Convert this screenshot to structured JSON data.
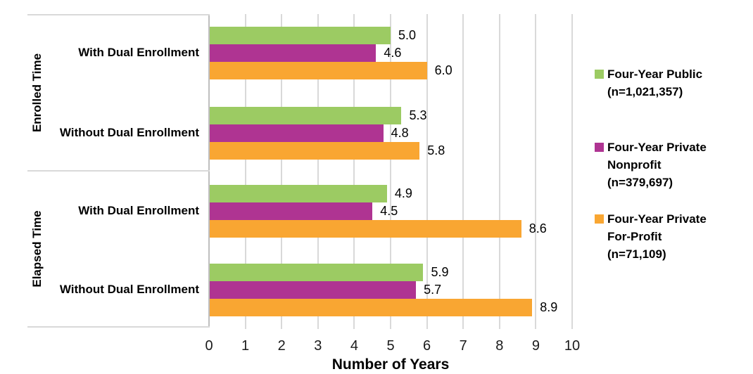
{
  "chart_data": {
    "type": "bar",
    "orientation": "horizontal",
    "xlabel": "Number of Years",
    "xlim": [
      0,
      10
    ],
    "x_ticks": [
      0,
      1,
      2,
      3,
      4,
      5,
      6,
      7,
      8,
      9,
      10
    ],
    "grid": true,
    "legend_position": "right",
    "sections": [
      {
        "label": "Enrolled Time"
      },
      {
        "label": "Elapsed Time"
      }
    ],
    "groups": [
      {
        "section": "Enrolled Time",
        "category": "With Dual Enrollment",
        "values": [
          5.0,
          4.6,
          6.0
        ]
      },
      {
        "section": "Enrolled Time",
        "category": "Without Dual Enrollment",
        "values": [
          5.3,
          4.8,
          5.8
        ]
      },
      {
        "section": "Elapsed Time",
        "category": "With Dual Enrollment",
        "values": [
          4.9,
          4.5,
          8.6
        ]
      },
      {
        "section": "Elapsed Time",
        "category": "Without Dual Enrollment",
        "values": [
          5.9,
          5.7,
          8.9
        ]
      }
    ],
    "series": [
      {
        "name": "Four-Year Public (n=1,021,357)",
        "color": "#9CCB63"
      },
      {
        "name": "Four-Year Private Nonprofit (n=379,697)",
        "color": "#AF3492"
      },
      {
        "name": "Four-Year Private For-Profit (n=71,109)",
        "color": "#F9A632"
      }
    ],
    "legend": [
      {
        "lines": [
          "Four-Year Public",
          "(n=1,021,357)"
        ],
        "color": "#9CCB63"
      },
      {
        "lines": [
          "Four-Year Private",
          "Nonprofit",
          "(n=379,697)"
        ],
        "color": "#AF3492"
      },
      {
        "lines": [
          "Four-Year Private",
          "For-Profit",
          "(n=71,109)"
        ],
        "color": "#F9A632"
      }
    ]
  },
  "colors": {
    "gridline": "#D9D9D9",
    "axis_line": "#BFBFBF",
    "category_border": "#D9D9D9",
    "tick_text": "#1a1a1a",
    "text": "#000000",
    "background": "#FFFFFF"
  }
}
